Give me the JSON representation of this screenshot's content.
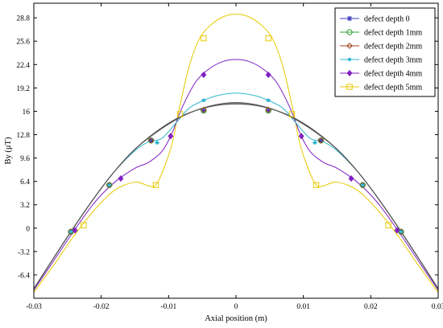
{
  "chart_data": {
    "type": "line",
    "title": "",
    "xlabel": "Axial position (m)",
    "ylabel": "By (μT)",
    "xlim": [
      -0.03,
      0.03
    ],
    "ylim": [
      -9.6,
      30.8
    ],
    "x_ticks": [
      "-0.03",
      "-0.02",
      "-0.01",
      "0",
      "0.01",
      "0.02",
      "0.03"
    ],
    "y_ticks": [
      "-6.4",
      "-3.2",
      "0",
      "3.2",
      "6.4",
      "9.6",
      "12.8",
      "16",
      "19.2",
      "22.4",
      "25.6",
      "28.8"
    ],
    "grid": false,
    "legend_position": "top-right",
    "series": [
      {
        "name": "defect depth 0",
        "color": "#4040c0",
        "marker": "star",
        "curve_x": [
          -0.03,
          -0.027,
          -0.024,
          -0.021,
          -0.018,
          -0.015,
          -0.012,
          -0.009,
          -0.006,
          -0.003,
          0,
          0.003,
          0.006,
          0.009,
          0.012,
          0.015,
          0.018,
          0.021,
          0.024,
          0.027,
          0.03
        ],
        "curve_y": [
          -8.3,
          -4.0,
          0.2,
          4.2,
          7.8,
          10.8,
          13.1,
          14.9,
          16.1,
          16.8,
          17.0,
          16.8,
          16.1,
          14.9,
          13.1,
          10.8,
          7.8,
          4.2,
          0.2,
          -4.0,
          -8.3
        ],
        "marker_x": [
          -0.0245,
          -0.0188,
          -0.0126,
          -0.0048,
          0.0048,
          0.0126,
          0.0188,
          0.0245
        ],
        "marker_y": [
          -0.5,
          5.9,
          12.0,
          16.1,
          16.1,
          12.0,
          5.9,
          -0.5
        ]
      },
      {
        "name": "defect depth 1mm",
        "color": "#30a030",
        "marker": "circle",
        "curve_x": [
          -0.03,
          -0.027,
          -0.024,
          -0.021,
          -0.018,
          -0.015,
          -0.012,
          -0.009,
          -0.006,
          -0.003,
          0,
          0.003,
          0.006,
          0.009,
          0.012,
          0.015,
          0.018,
          0.021,
          0.024,
          0.027,
          0.03
        ],
        "curve_y": [
          -8.3,
          -4.0,
          0.2,
          4.2,
          7.8,
          10.8,
          13.1,
          14.9,
          16.1,
          16.8,
          17.05,
          16.8,
          16.1,
          14.9,
          13.1,
          10.8,
          7.8,
          4.2,
          0.2,
          -4.0,
          -8.3
        ],
        "marker_x": [
          -0.0245,
          -0.0188,
          -0.0126,
          -0.0048,
          0.0048,
          0.0126,
          0.0188,
          0.0245
        ],
        "marker_y": [
          -0.5,
          5.9,
          12.0,
          16.1,
          16.1,
          12.0,
          5.9,
          -0.5
        ]
      },
      {
        "name": "defect depth 2mm",
        "color": "#a04020",
        "marker": "diamond",
        "curve_x": [
          -0.03,
          -0.027,
          -0.024,
          -0.021,
          -0.018,
          -0.015,
          -0.012,
          -0.009,
          -0.006,
          -0.003,
          0,
          0.003,
          0.006,
          0.009,
          0.012,
          0.015,
          0.018,
          0.021,
          0.024,
          0.027,
          0.03
        ],
        "curve_y": [
          -8.3,
          -4.0,
          0.2,
          4.2,
          7.8,
          10.8,
          13.0,
          14.8,
          16.1,
          16.9,
          17.2,
          16.9,
          16.1,
          14.8,
          13.0,
          10.8,
          7.8,
          4.2,
          0.2,
          -4.0,
          -8.3
        ],
        "marker_x": [
          -0.0245,
          -0.0188,
          -0.0126,
          -0.0048,
          0.0048,
          0.0126,
          0.0188,
          0.0245
        ],
        "marker_y": [
          -0.5,
          5.9,
          12.0,
          16.2,
          16.2,
          12.0,
          5.9,
          -0.5
        ]
      },
      {
        "name": "defect depth 3mm",
        "color": "#30b8d0",
        "marker": "dot",
        "curve_x": [
          -0.03,
          -0.027,
          -0.024,
          -0.021,
          -0.018,
          -0.015,
          -0.013,
          -0.011,
          -0.009,
          -0.007,
          -0.005,
          -0.003,
          0,
          0.003,
          0.005,
          0.007,
          0.009,
          0.011,
          0.013,
          0.015,
          0.018,
          0.021,
          0.024,
          0.027,
          0.03
        ],
        "curve_y": [
          -8.3,
          -4.0,
          0.2,
          4.2,
          7.8,
          10.6,
          11.8,
          12.3,
          14.3,
          16.4,
          17.4,
          18.1,
          18.5,
          18.1,
          17.4,
          16.4,
          14.3,
          12.3,
          11.8,
          10.6,
          7.8,
          4.2,
          0.2,
          -4.0,
          -8.3
        ],
        "marker_x": [
          -0.0245,
          -0.0188,
          -0.0117,
          -0.0048,
          0.0048,
          0.0117,
          0.0188,
          0.0245
        ],
        "marker_y": [
          -0.5,
          5.9,
          11.7,
          17.5,
          17.5,
          11.7,
          5.9,
          -0.5
        ]
      },
      {
        "name": "defect depth 4mm",
        "color": "#8020c0",
        "marker": "diamond-filled",
        "curve_x": [
          -0.03,
          -0.027,
          -0.024,
          -0.021,
          -0.018,
          -0.015,
          -0.013,
          -0.011,
          -0.0095,
          -0.008,
          -0.006,
          -0.004,
          -0.002,
          0,
          0.002,
          0.004,
          0.006,
          0.008,
          0.0095,
          0.011,
          0.013,
          0.015,
          0.018,
          0.021,
          0.024,
          0.027,
          0.03
        ],
        "curve_y": [
          -8.5,
          -4.4,
          -0.3,
          3.5,
          6.3,
          8.2,
          9.0,
          10.5,
          13.0,
          16.5,
          20.0,
          21.8,
          22.8,
          23.1,
          22.8,
          21.8,
          20.0,
          16.5,
          13.0,
          10.5,
          9.0,
          8.2,
          6.3,
          3.5,
          -0.3,
          -4.4,
          -8.5
        ],
        "marker_x": [
          -0.0239,
          -0.0171,
          -0.0097,
          -0.0048,
          0.0048,
          0.0097,
          0.0171,
          0.0239
        ],
        "marker_y": [
          -0.3,
          6.8,
          12.6,
          21.0,
          21.0,
          12.6,
          6.8,
          -0.3
        ]
      },
      {
        "name": "defect depth 5mm",
        "color": "#e8c800",
        "marker": "square",
        "curve_x": [
          -0.03,
          -0.027,
          -0.024,
          -0.021,
          -0.018,
          -0.015,
          -0.013,
          -0.012,
          -0.011,
          -0.0095,
          -0.0085,
          -0.007,
          -0.0055,
          -0.004,
          -0.002,
          0,
          0.002,
          0.004,
          0.0055,
          0.007,
          0.0085,
          0.0095,
          0.011,
          0.012,
          0.013,
          0.015,
          0.018,
          0.021,
          0.024,
          0.027,
          0.03
        ],
        "curve_y": [
          -8.8,
          -5.0,
          -1.0,
          2.5,
          5.2,
          6.3,
          5.8,
          5.8,
          7.5,
          11.5,
          16.0,
          22.0,
          25.8,
          27.6,
          28.9,
          29.3,
          28.9,
          27.6,
          25.8,
          22.0,
          16.0,
          11.5,
          7.5,
          5.8,
          5.8,
          6.3,
          5.2,
          2.5,
          -1.0,
          -5.0,
          -8.8
        ],
        "marker_x": [
          -0.0226,
          -0.0119,
          -0.0083,
          -0.0048,
          0.0048,
          0.0083,
          0.0119,
          0.0226
        ],
        "marker_y": [
          0.4,
          5.9,
          15.6,
          26.0,
          26.0,
          15.6,
          5.9,
          0.4
        ]
      }
    ]
  }
}
